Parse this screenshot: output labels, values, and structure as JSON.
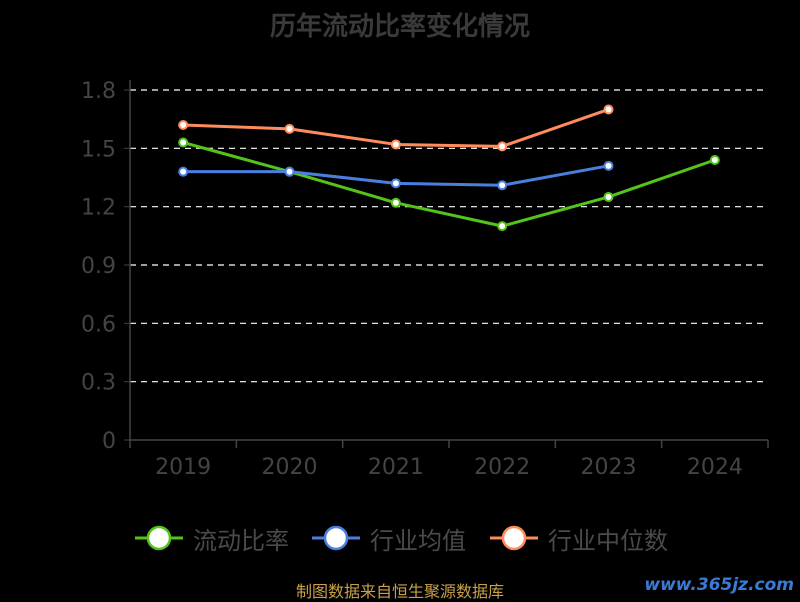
{
  "chart_data": {
    "type": "line",
    "title": "历年流动比率变化情况",
    "categories": [
      "2019",
      "2020",
      "2021",
      "2022",
      "2023",
      "2024"
    ],
    "ylim": [
      0,
      1.8
    ],
    "yticks": [
      "0",
      "0.3",
      "0.6",
      "0.9",
      "1.2",
      "1.5",
      "1.8"
    ],
    "grid": true,
    "legend_position": "bottom",
    "series": [
      {
        "name": "流动比率",
        "color": "#52c41a",
        "values": [
          1.53,
          1.38,
          1.22,
          1.1,
          1.25,
          1.44
        ]
      },
      {
        "name": "行业均值",
        "color": "#4a7fe0",
        "values": [
          1.38,
          1.38,
          1.32,
          1.31,
          1.41,
          null
        ]
      },
      {
        "name": "行业中位数",
        "color": "#ff8c5a",
        "values": [
          1.62,
          1.6,
          1.52,
          1.51,
          1.7,
          null
        ]
      }
    ]
  },
  "footer": {
    "source": "制图数据来自恒生聚源数据库",
    "watermark": "www.365jz.com"
  }
}
